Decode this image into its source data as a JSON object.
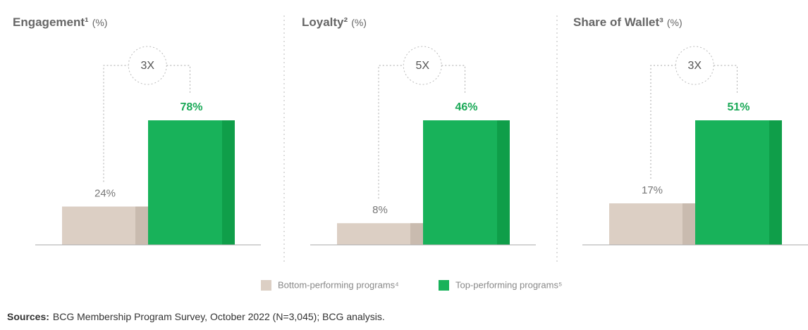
{
  "chart_data": [
    {
      "type": "bar",
      "title": "Engagement¹",
      "unit": "(%)",
      "annotation": "3X",
      "values": [
        24,
        78
      ],
      "value_labels": [
        "24%",
        "78%"
      ],
      "ylim": [
        0,
        78
      ]
    },
    {
      "type": "bar",
      "title": "Loyalty²",
      "unit": "(%)",
      "annotation": "5X",
      "values": [
        8,
        46
      ],
      "value_labels": [
        "8%",
        "46%"
      ],
      "ylim": [
        0,
        46
      ]
    },
    {
      "type": "bar",
      "title": "Share of Wallet³",
      "unit": "(%)",
      "annotation": "3X",
      "values": [
        17,
        51
      ],
      "value_labels": [
        "17%",
        "51%"
      ],
      "ylim": [
        0,
        51
      ]
    }
  ],
  "legend": {
    "items": [
      {
        "name": "Bottom-performing programs⁴",
        "color": "#dccfc4",
        "shade": "#c9bbaf",
        "label_color": "#777777"
      },
      {
        "name": "Top-performing programs⁵",
        "color": "#18b25a",
        "shade": "#0f9e49",
        "label_color": "#1aa957"
      }
    ]
  },
  "source": {
    "label": "Sources:",
    "text": "BCG Membership Program Survey, October 2022 (N=3,045); BCG analysis."
  }
}
